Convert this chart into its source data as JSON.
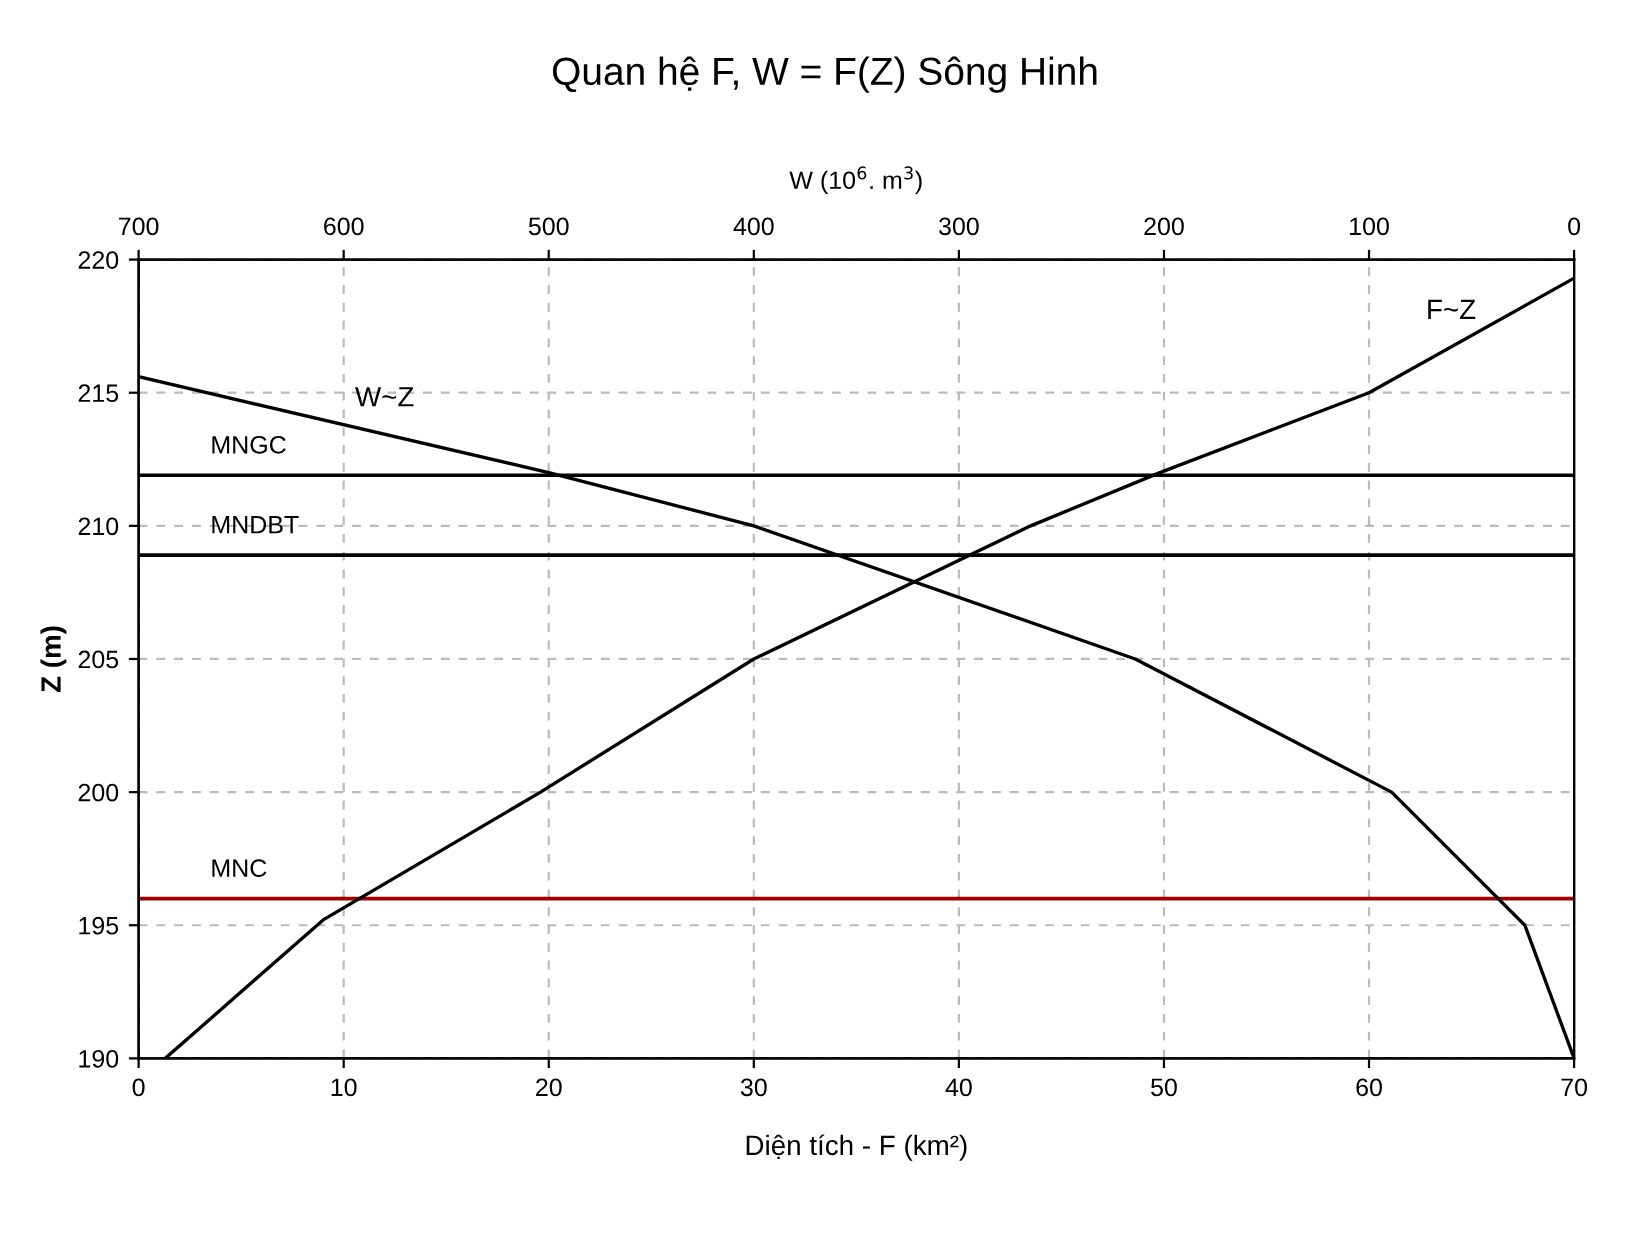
{
  "chart_data": {
    "type": "line",
    "title": "Quan hệ F, W = F(Z) Sông Hinh",
    "x2label": "W (10$^{6}$. m$^{3}$)",
    "xlabel": "Diện tích - F (km²)",
    "ylabel": "Z (m)",
    "series": [
      {
        "name": "F~Z",
        "color": "#000000",
        "x": [
          1.3,
          9,
          19.6,
          30,
          43.5,
          49.8,
          60,
          70
        ],
        "values": [
          190,
          195.2,
          200,
          205,
          210,
          212,
          215,
          219.3
        ]
      },
      {
        "name": "W~Z",
        "color": "#000000",
        "axis": "x2",
        "x": [
          700,
          500,
          400,
          214,
          89,
          24,
          0
        ],
        "values": [
          215.6,
          212,
          210,
          205,
          200,
          195,
          190
        ]
      }
    ],
    "xlim": [
      0,
      70
    ],
    "xticks": [
      0,
      10,
      20,
      30,
      40,
      50,
      60,
      70
    ],
    "x2lim": [
      700,
      0
    ],
    "x2ticks": [
      700,
      600,
      500,
      400,
      300,
      200,
      100,
      0
    ],
    "ylim": [
      190,
      220
    ],
    "yticks": [
      190,
      195,
      200,
      205,
      210,
      215,
      220
    ],
    "ref_lines": [
      {
        "axis": "y",
        "value": 211.9,
        "label": "MNGC",
        "color": "#000000"
      },
      {
        "axis": "y",
        "value": 208.9,
        "label": "MNDBT",
        "color": "#000000"
      },
      {
        "axis": "y",
        "value": 196,
        "label": "MNC",
        "color": "#a00000"
      }
    ],
    "grid": true,
    "line_style": "solid",
    "marker": "none",
    "legend": false
  }
}
